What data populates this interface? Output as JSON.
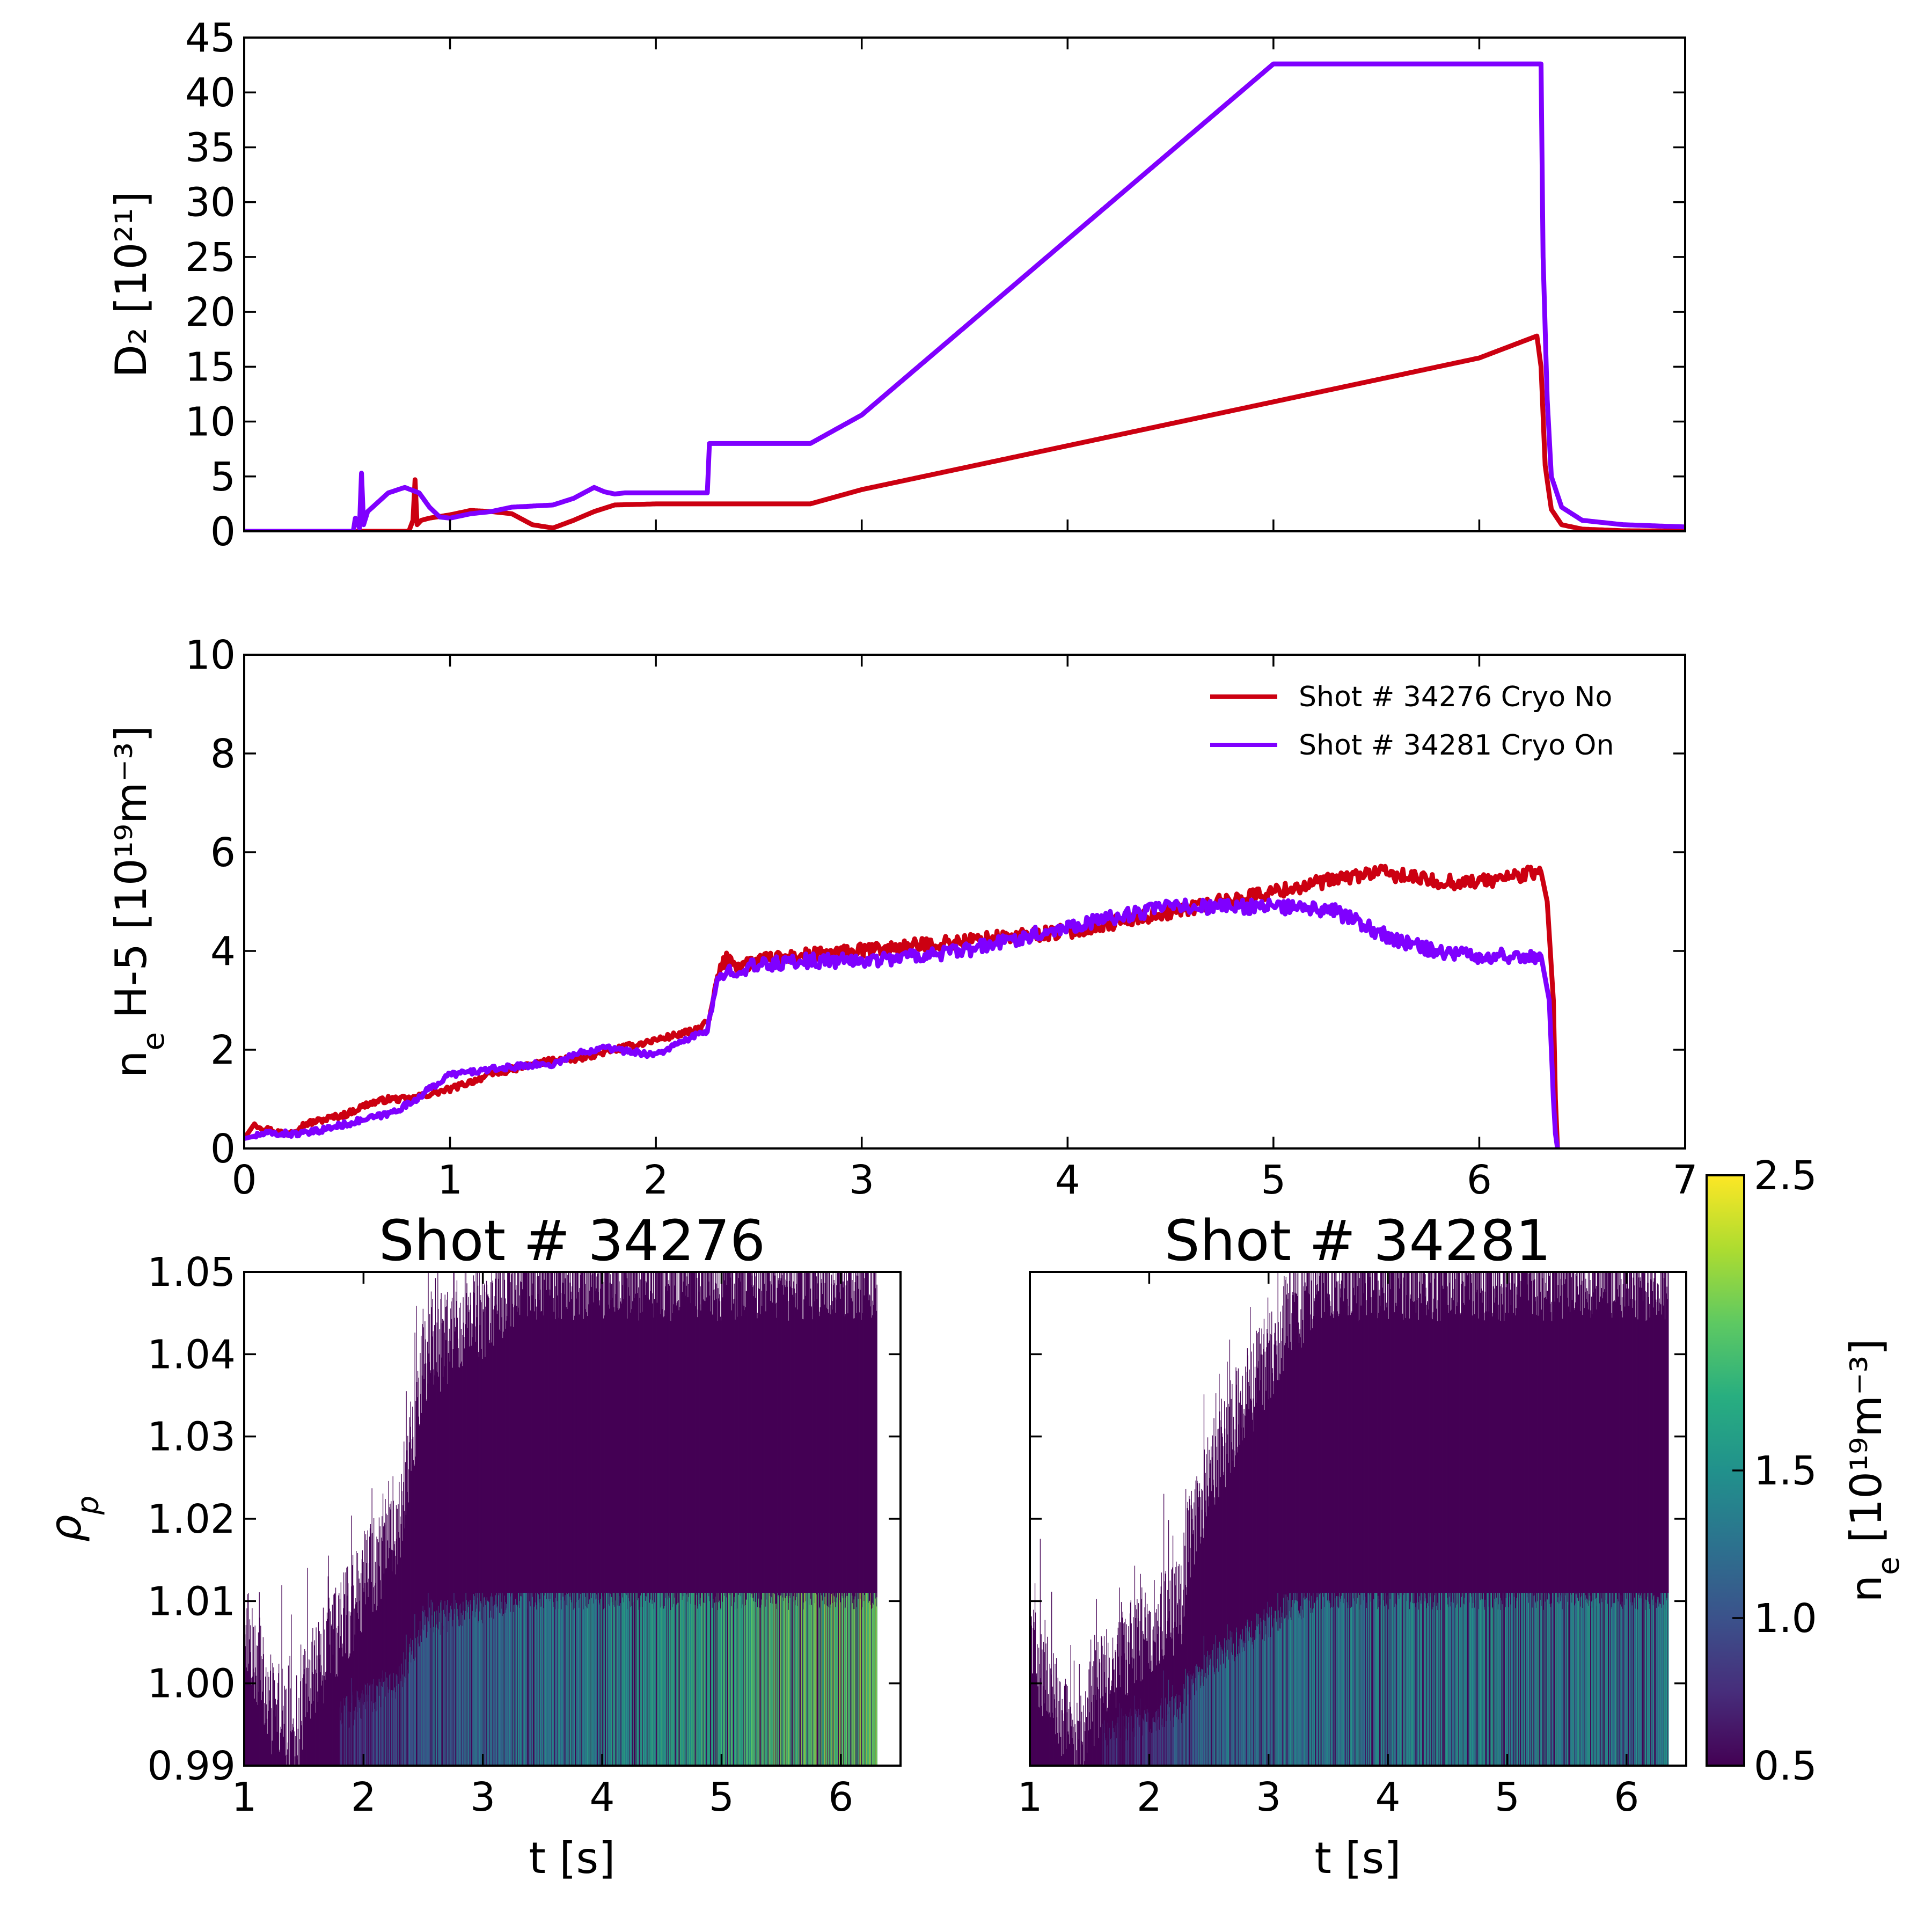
{
  "chart_data": [
    {
      "type": "line",
      "panel": "top",
      "ylabel": "D₂  [10²¹]",
      "xlim": [
        0,
        7
      ],
      "ylim": [
        0,
        45
      ],
      "yticks": [
        "0",
        "5",
        "10",
        "15",
        "20",
        "25",
        "30",
        "35",
        "40",
        "45"
      ],
      "series": [
        {
          "name": "Shot # 34276 Cryo No",
          "color": "#cc0011",
          "x": [
            0,
            0.8,
            0.82,
            0.83,
            0.84,
            0.86,
            0.9,
            1.0,
            1.1,
            1.2,
            1.3,
            1.4,
            1.5,
            1.6,
            1.7,
            1.8,
            2.0,
            2.3,
            2.75,
            3.0,
            4.0,
            5.0,
            6.0,
            6.28,
            6.3,
            6.32,
            6.35,
            6.4,
            6.5,
            6.7,
            7.0
          ],
          "y": [
            0,
            0,
            1.0,
            4.7,
            0.6,
            1.0,
            1.2,
            1.5,
            1.9,
            1.8,
            1.6,
            0.6,
            0.3,
            1.0,
            1.8,
            2.4,
            2.5,
            2.5,
            2.5,
            3.8,
            7.8,
            11.8,
            15.8,
            17.8,
            15.0,
            6.0,
            2.0,
            0.6,
            0.2,
            0.05,
            0.02
          ]
        },
        {
          "name": "Shot # 34281 Cryo On",
          "color": "#7f00ff",
          "x": [
            0,
            0.53,
            0.54,
            0.56,
            0.57,
            0.58,
            0.6,
            0.7,
            0.78,
            0.85,
            0.9,
            0.95,
            1.0,
            1.1,
            1.2,
            1.3,
            1.4,
            1.5,
            1.6,
            1.65,
            1.7,
            1.75,
            1.8,
            1.85,
            2.0,
            2.25,
            2.26,
            2.5,
            2.75,
            3.0,
            4.0,
            5.0,
            5.5,
            6.0,
            6.3,
            6.31,
            6.33,
            6.35,
            6.4,
            6.5,
            6.7,
            7.0
          ],
          "y": [
            0,
            0,
            1.2,
            0.3,
            5.3,
            0.6,
            1.8,
            3.5,
            4.0,
            3.5,
            2.2,
            1.3,
            1.2,
            1.6,
            1.8,
            2.2,
            2.3,
            2.4,
            3.0,
            3.5,
            4.0,
            3.6,
            3.4,
            3.5,
            3.5,
            3.5,
            8.0,
            8.0,
            8.0,
            10.6,
            26.6,
            42.6,
            42.6,
            42.6,
            42.6,
            25.0,
            12.0,
            5.0,
            2.2,
            1.0,
            0.6,
            0.4
          ]
        }
      ]
    },
    {
      "type": "line",
      "panel": "middle",
      "ylabel": "n",
      "ylabel_sub": "e",
      "ylabel_rest": " H-5 [10¹⁹m⁻³]",
      "xlim": [
        0,
        7
      ],
      "ylim": [
        0,
        10
      ],
      "xticks": [
        "0",
        "1",
        "2",
        "3",
        "4",
        "5",
        "6",
        "7"
      ],
      "yticks": [
        "0",
        "2",
        "4",
        "6",
        "8",
        "10"
      ],
      "legend_position": "upper-right",
      "series": [
        {
          "name": "Shot # 34276 Cryo No",
          "color": "#cc0011",
          "x": [
            0,
            0.05,
            0.1,
            0.2,
            0.3,
            0.5,
            0.6,
            0.7,
            0.8,
            1.0,
            1.2,
            1.4,
            1.5,
            1.6,
            1.7,
            1.8,
            2.0,
            2.2,
            2.26,
            2.3,
            2.35,
            2.4,
            2.5,
            2.7,
            3.0,
            3.5,
            4.0,
            4.5,
            5.0,
            5.5,
            5.8,
            6.0,
            6.3,
            6.33,
            6.36,
            6.37,
            6.38
          ],
          "y": [
            0.2,
            0.5,
            0.4,
            0.3,
            0.5,
            0.7,
            0.9,
            1.0,
            1.0,
            1.2,
            1.5,
            1.7,
            1.8,
            1.8,
            1.9,
            2.0,
            2.2,
            2.4,
            2.6,
            3.5,
            3.9,
            3.7,
            3.8,
            3.9,
            4.0,
            4.2,
            4.4,
            4.8,
            5.2,
            5.6,
            5.4,
            5.4,
            5.6,
            5.0,
            3.0,
            1.0,
            0
          ]
        },
        {
          "name": "Shot # 34281 Cryo On",
          "color": "#7f00ff",
          "x": [
            0,
            0.1,
            0.2,
            0.3,
            0.5,
            0.7,
            0.8,
            0.9,
            1.0,
            1.2,
            1.4,
            1.5,
            1.6,
            1.7,
            1.75,
            1.8,
            2.0,
            2.25,
            2.3,
            2.35,
            2.5,
            2.7,
            3.0,
            3.5,
            4.0,
            4.5,
            5.0,
            5.3,
            5.6,
            5.8,
            6.0,
            6.3,
            6.34,
            6.36,
            6.37,
            6.38
          ],
          "y": [
            0.2,
            0.3,
            0.3,
            0.3,
            0.5,
            0.7,
            0.9,
            1.2,
            1.5,
            1.6,
            1.7,
            1.7,
            1.9,
            2.0,
            2.1,
            2.0,
            1.9,
            2.4,
            3.4,
            3.6,
            3.7,
            3.8,
            3.8,
            4.0,
            4.5,
            4.9,
            4.9,
            4.8,
            4.2,
            4.0,
            3.9,
            3.9,
            3.0,
            1.0,
            0.3,
            0
          ]
        }
      ]
    },
    {
      "type": "heatmap",
      "panel": "bottom-left",
      "title": "Shot #  34276",
      "xlabel": "t [s]",
      "ylabel": "ρ",
      "ylabel_sub": "p",
      "xlim": [
        1,
        6.5
      ],
      "ylim": [
        0.99,
        1.05
      ],
      "xticks": [
        "1",
        "2",
        "3",
        "4",
        "5",
        "6"
      ],
      "yticks": [
        "0.99",
        "1.00",
        "1.01",
        "1.02",
        "1.03",
        "1.04",
        "1.05"
      ],
      "edge_profile": {
        "t": [
          1.0,
          1.2,
          1.45,
          1.5,
          1.8,
          2.0,
          2.3,
          2.4,
          2.5,
          3.0,
          3.3,
          6.3
        ],
        "rho": [
          1.008,
          0.998,
          0.992,
          0.999,
          1.007,
          1.012,
          1.02,
          1.03,
          1.04,
          1.045,
          1.05,
          1.05
        ]
      },
      "core_level": {
        "t": [
          1.8,
          2.0,
          2.3,
          2.5,
          3.0,
          4.0,
          5.0,
          5.5,
          6.3
        ],
        "ne": [
          0.75,
          0.85,
          1.05,
          1.15,
          1.25,
          1.45,
          1.75,
          1.9,
          2.0
        ]
      },
      "t_end": 6.3
    },
    {
      "type": "heatmap",
      "panel": "bottom-right",
      "title": "Shot #  34281",
      "xlabel": "t [s]",
      "xlim": [
        1,
        6.5
      ],
      "ylim": [
        0.99,
        1.05
      ],
      "xticks": [
        "1",
        "2",
        "3",
        "4",
        "5",
        "6"
      ],
      "edge_profile": {
        "t": [
          1.0,
          1.2,
          1.4,
          1.5,
          1.6,
          2.0,
          2.28,
          2.3,
          2.5,
          3.0,
          3.4,
          6.35
        ],
        "rho": [
          1.004,
          0.998,
          0.992,
          0.997,
          1.0,
          1.007,
          1.01,
          1.016,
          1.026,
          1.04,
          1.05,
          1.05
        ]
      },
      "core_level": {
        "t": [
          1.6,
          2.0,
          2.3,
          2.5,
          3.0,
          4.0,
          5.0,
          6.35
        ],
        "ne": [
          0.7,
          0.8,
          1.15,
          1.25,
          1.3,
          1.4,
          1.45,
          1.4
        ]
      },
      "t_end": 6.35
    },
    {
      "type": "colorbar",
      "colormap": "viridis",
      "label": "n",
      "label_sub": "e",
      "label_rest": " [10¹⁹m⁻³]",
      "range": [
        0.5,
        2.5
      ],
      "ticks": [
        "0.5",
        "1.0",
        "1.5",
        "2.5"
      ]
    }
  ]
}
